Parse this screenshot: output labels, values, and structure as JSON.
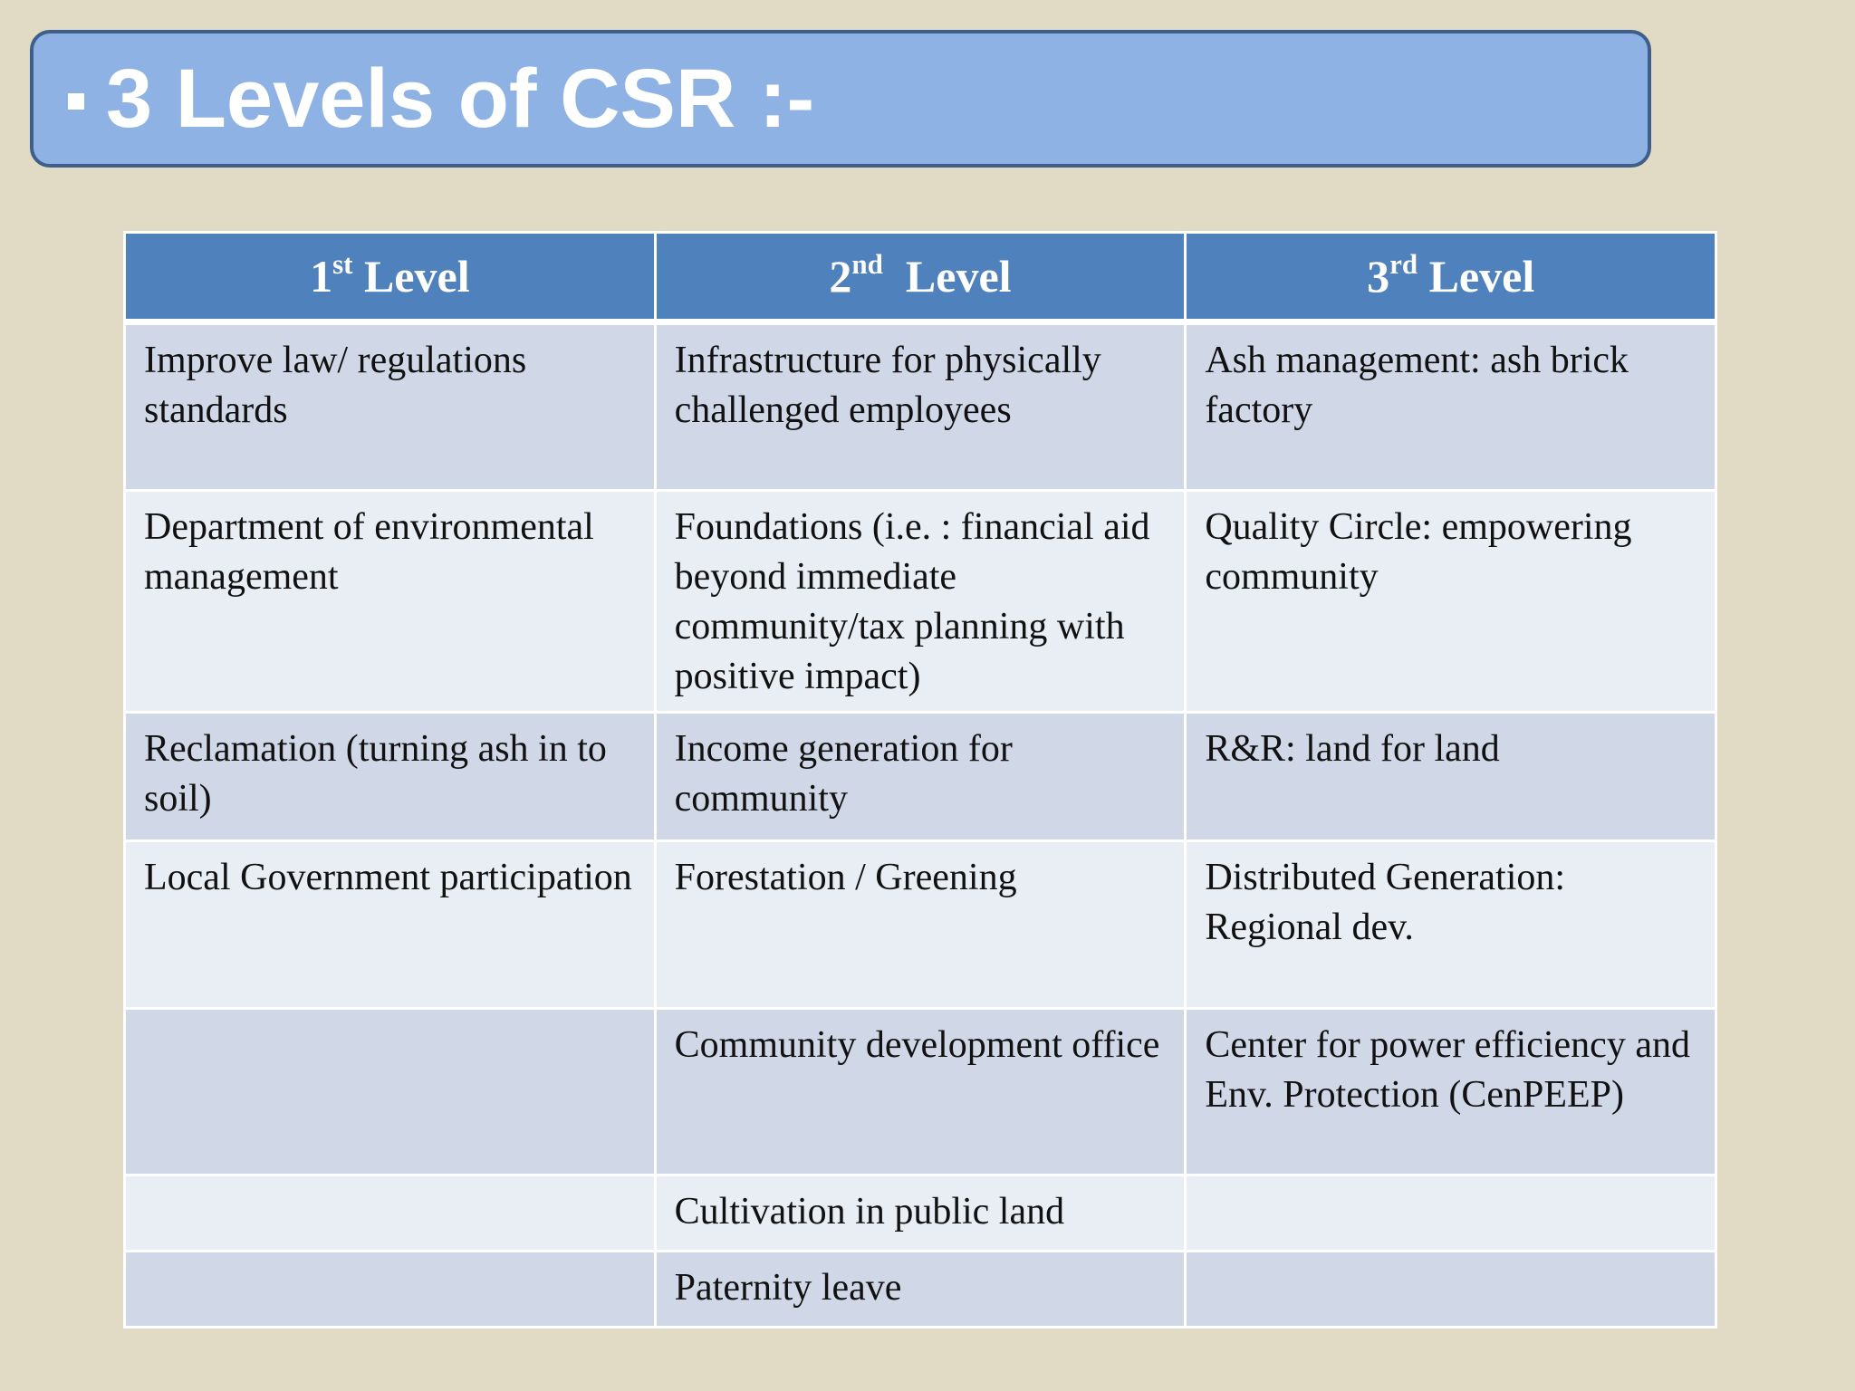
{
  "slide": {
    "title": "3 Levels of CSR :-"
  },
  "table": {
    "headers": [
      {
        "num": "1",
        "ord": "st",
        "label": "Level"
      },
      {
        "num": "2",
        "ord": "nd",
        "label": "Level"
      },
      {
        "num": "3",
        "ord": "rd",
        "label": "Level"
      }
    ],
    "rows": [
      [
        "Improve law/ regulations standards",
        "Infrastructure for physically challenged employees",
        "Ash management: ash brick factory"
      ],
      [
        "Department of environmental management",
        "Foundations (i.e. : financial aid beyond immediate community/tax planning with positive impact)",
        "Quality Circle: empowering community"
      ],
      [
        "Reclamation (turning ash in to soil)",
        "Income generation for community",
        "R&R: land for land"
      ],
      [
        "Local Government participation",
        "Forestation / Greening",
        "Distributed Generation: Regional dev."
      ],
      [
        "",
        "Community development office",
        "Center for power efficiency and Env. Protection (CenPEEP)"
      ],
      [
        "",
        "Cultivation in public land",
        ""
      ],
      [
        "",
        "Paternity leave",
        ""
      ]
    ]
  }
}
